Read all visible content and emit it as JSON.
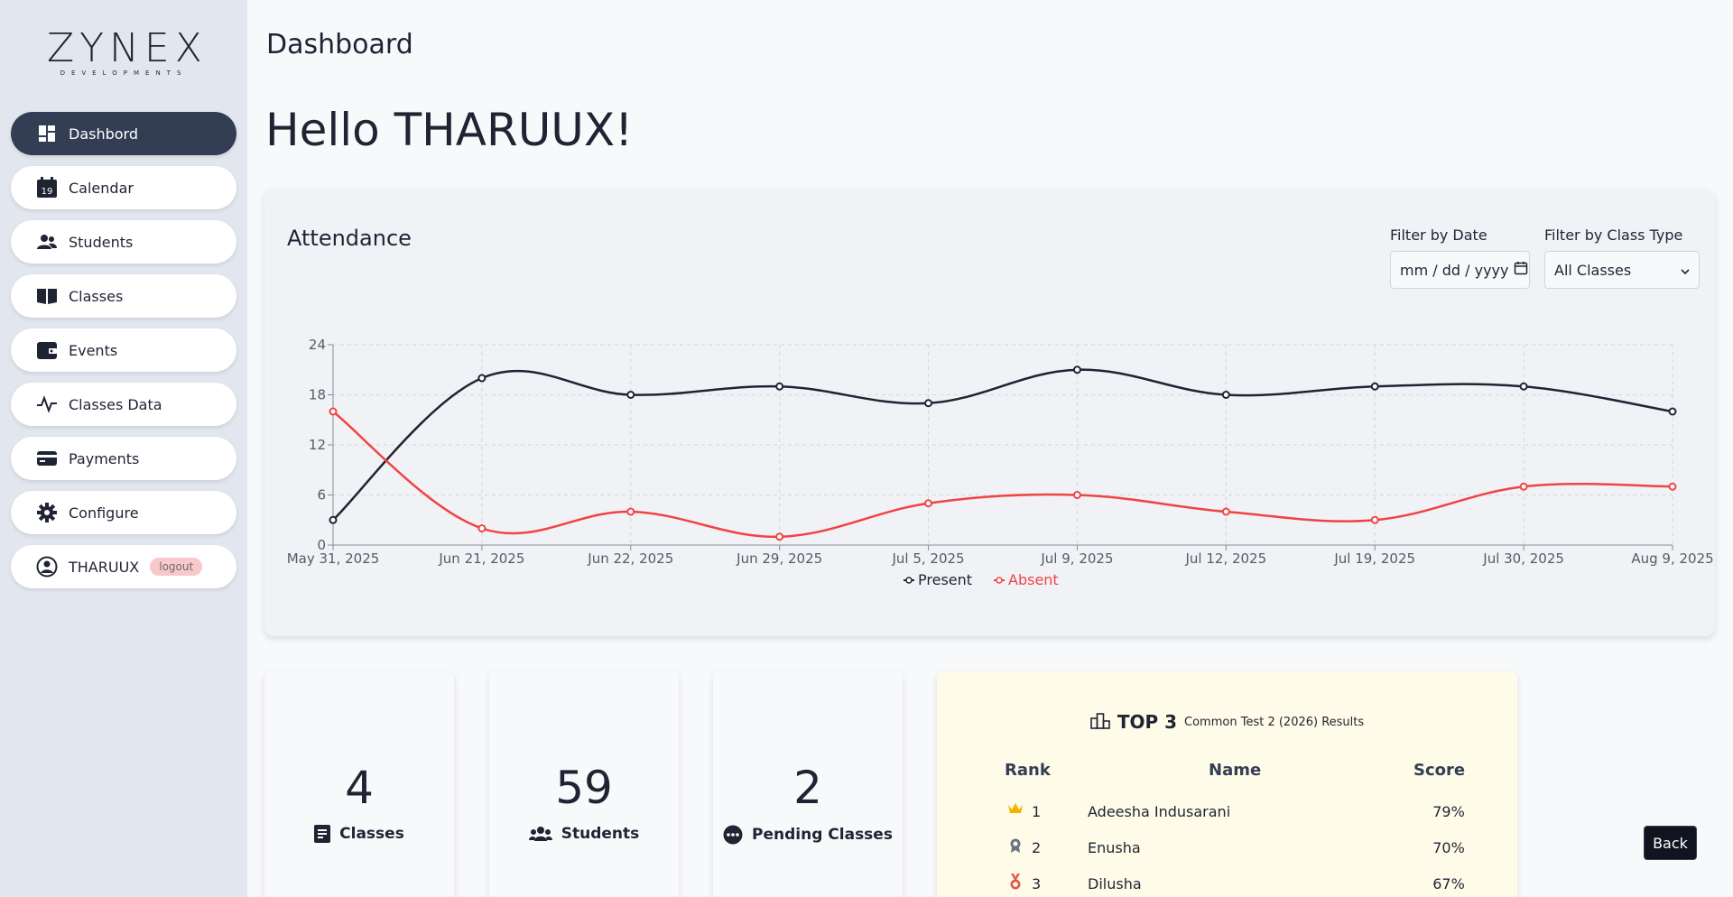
{
  "logo": {
    "word": "ZYNEX",
    "sub": "DEVELOPMENTS"
  },
  "sidebar": {
    "items": [
      {
        "label": "Dashbord",
        "icon": "dashboard-icon"
      },
      {
        "label": "Calendar",
        "icon": "calendar-icon"
      },
      {
        "label": "Students",
        "icon": "users-icon"
      },
      {
        "label": "Classes",
        "icon": "book-icon"
      },
      {
        "label": "Events",
        "icon": "wallet-icon"
      },
      {
        "label": "Classes Data",
        "icon": "pulse-icon"
      },
      {
        "label": "Payments",
        "icon": "card-icon"
      },
      {
        "label": "Configure",
        "icon": "gear-icon"
      }
    ],
    "user": {
      "name": "THARUUX",
      "logout": "logout",
      "icon": "user-circle-icon"
    },
    "calendar_day": "19"
  },
  "header": {
    "title": "Dashboard",
    "greeting": "Hello THARUUX!"
  },
  "attendance": {
    "title": "Attendance",
    "filter_date_label": "Filter by Date",
    "filter_date_placeholder": "mm / dd / yyyy",
    "filter_class_label": "Filter by Class Type",
    "filter_class_value": "All Classes"
  },
  "chart_data": {
    "type": "line",
    "x": [
      "May 31, 2025",
      "Jun 21, 2025",
      "Jun 22, 2025",
      "Jun 29, 2025",
      "Jul 5, 2025",
      "Jul 9, 2025",
      "Jul 12, 2025",
      "Jul 19, 2025",
      "Jul 30, 2025",
      "Aug 9, 2025"
    ],
    "series": [
      {
        "name": "Present",
        "color": "#1f2433",
        "values": [
          3,
          20,
          18,
          19,
          17,
          21,
          18,
          19,
          19,
          16
        ]
      },
      {
        "name": "Absent",
        "color": "#ef4444",
        "values": [
          16,
          2,
          4,
          1,
          5,
          6,
          4,
          3,
          7,
          7
        ]
      }
    ],
    "ylim": [
      0,
      24
    ],
    "yticks": [
      0,
      6,
      12,
      18,
      24
    ],
    "grid": true,
    "legend": "bottom"
  },
  "stats": [
    {
      "value": "4",
      "label": "Classes",
      "icon": "document-icon",
      "color": "#dcfce6"
    },
    {
      "value": "59",
      "label": "Students",
      "icon": "users-icon",
      "color": "#dbeafe"
    },
    {
      "value": "2",
      "label": "Pending Classes",
      "icon": "more-circle-icon",
      "color": "#fee2e2"
    }
  ],
  "top3": {
    "title": "TOP 3",
    "subtitle": "Common Test 2 (2026) Results",
    "icon": "podium-icon",
    "headers": {
      "rank": "Rank",
      "name": "Name",
      "score": "Score"
    },
    "rows": [
      {
        "rank": "1",
        "name": "Adeesha Indusarani",
        "score": "79%",
        "medal": "crown-icon",
        "medal_color": "#f5b301"
      },
      {
        "rank": "2",
        "name": "Enusha",
        "score": "70%",
        "medal": "award-icon",
        "medal_color": "#6b7280"
      },
      {
        "rank": "3",
        "name": "Dilusha",
        "score": "67%",
        "medal": "medal-icon",
        "medal_color": "#e05a47"
      }
    ]
  },
  "back_label": "Back"
}
